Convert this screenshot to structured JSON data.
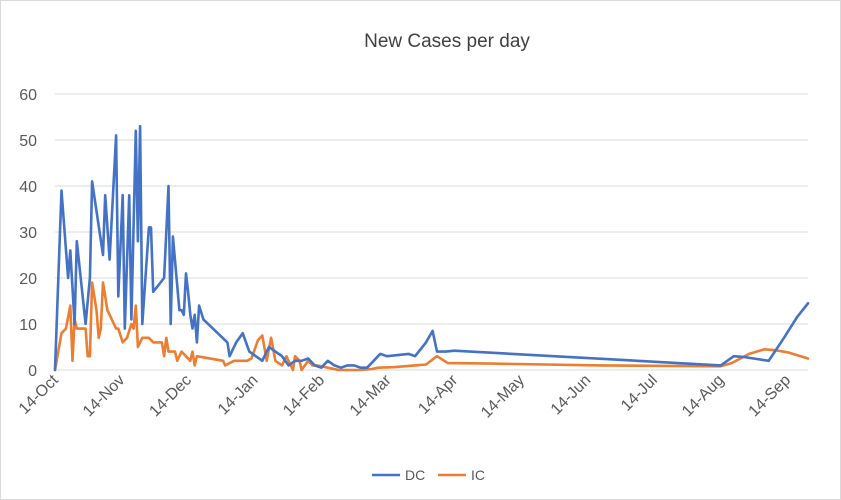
{
  "chart_data": {
    "type": "line",
    "title": "New Cases per day",
    "xlabel": "",
    "ylabel": "",
    "ylim": [
      0,
      60
    ],
    "yticks": [
      0,
      10,
      20,
      30,
      40,
      50,
      60
    ],
    "x_tick_labels": [
      "14-Oct",
      "14-Nov",
      "14-Dec",
      "14-Jan",
      "14-Feb",
      "14-Mar",
      "14-Apr",
      "14-May",
      "14-Jun",
      "14-Jul",
      "14-Aug",
      "14-Sep"
    ],
    "x_unit": "days since 14-Oct",
    "xlim": [
      0,
      345
    ],
    "grid": true,
    "legend_position": "bottom",
    "series": [
      {
        "name": "DC",
        "color": "#4472C4",
        "points": [
          [
            0,
            0
          ],
          [
            3,
            39
          ],
          [
            6,
            20
          ],
          [
            7,
            26
          ],
          [
            9,
            10
          ],
          [
            10,
            28
          ],
          [
            14,
            10
          ],
          [
            16,
            20
          ],
          [
            17,
            41
          ],
          [
            22,
            25
          ],
          [
            23,
            38
          ],
          [
            25,
            24
          ],
          [
            28,
            51
          ],
          [
            29,
            16
          ],
          [
            31,
            38
          ],
          [
            32,
            9
          ],
          [
            34,
            38
          ],
          [
            35,
            11
          ],
          [
            37,
            52
          ],
          [
            38,
            28
          ],
          [
            39,
            53
          ],
          [
            40,
            10
          ],
          [
            43,
            31
          ],
          [
            44,
            31
          ],
          [
            45,
            17
          ],
          [
            50,
            20
          ],
          [
            51,
            30
          ],
          [
            52,
            40
          ],
          [
            53,
            10
          ],
          [
            54,
            29
          ],
          [
            57,
            13
          ],
          [
            58,
            13
          ],
          [
            59,
            12
          ],
          [
            60,
            21
          ],
          [
            61,
            17
          ],
          [
            62,
            12
          ],
          [
            63,
            9
          ],
          [
            64,
            12
          ],
          [
            65,
            6
          ],
          [
            66,
            14
          ],
          [
            68,
            11
          ],
          [
            79,
            6
          ],
          [
            80,
            3
          ],
          [
            83,
            6
          ],
          [
            86,
            8
          ],
          [
            89,
            4
          ],
          [
            92,
            3
          ],
          [
            95,
            2
          ],
          [
            98,
            5
          ],
          [
            101,
            4
          ],
          [
            104,
            3
          ],
          [
            107,
            1
          ],
          [
            110,
            2
          ],
          [
            113,
            2
          ],
          [
            116,
            2.5
          ],
          [
            119,
            1
          ],
          [
            122,
            0.5
          ],
          [
            125,
            2
          ],
          [
            128,
            1
          ],
          [
            131,
            0.5
          ],
          [
            134,
            1
          ],
          [
            137,
            1
          ],
          [
            140,
            0.5
          ],
          [
            143,
            0.5
          ],
          [
            146,
            2
          ],
          [
            149,
            3.5
          ],
          [
            152,
            3
          ],
          [
            162,
            3.5
          ],
          [
            165,
            3
          ],
          [
            170,
            6
          ],
          [
            173,
            8.5
          ],
          [
            175,
            4
          ],
          [
            179,
            4
          ],
          [
            183,
            4.2
          ],
          [
            305,
            1
          ],
          [
            311,
            3
          ],
          [
            316,
            2.8
          ],
          [
            327,
            2
          ],
          [
            334,
            7
          ],
          [
            340,
            11.5
          ],
          [
            345,
            14.5
          ]
        ]
      },
      {
        "name": "IC",
        "color": "#ED7D31",
        "points": [
          [
            0,
            0
          ],
          [
            3,
            8
          ],
          [
            5,
            9
          ],
          [
            7,
            14
          ],
          [
            8,
            2
          ],
          [
            9,
            11
          ],
          [
            10,
            9
          ],
          [
            14,
            9
          ],
          [
            15,
            3
          ],
          [
            16,
            3
          ],
          [
            17,
            19
          ],
          [
            19,
            13
          ],
          [
            20,
            7
          ],
          [
            21,
            9
          ],
          [
            22,
            19
          ],
          [
            24,
            13
          ],
          [
            28,
            9
          ],
          [
            29,
            9
          ],
          [
            31,
            6
          ],
          [
            33,
            7
          ],
          [
            35,
            10
          ],
          [
            36,
            9
          ],
          [
            37,
            14
          ],
          [
            38,
            5
          ],
          [
            40,
            7
          ],
          [
            43,
            7
          ],
          [
            45,
            6
          ],
          [
            49,
            6
          ],
          [
            50,
            3
          ],
          [
            51,
            7
          ],
          [
            52,
            4
          ],
          [
            55,
            4
          ],
          [
            56,
            2
          ],
          [
            58,
            4
          ],
          [
            60,
            3
          ],
          [
            62,
            2
          ],
          [
            63,
            4
          ],
          [
            64,
            1
          ],
          [
            65,
            3
          ],
          [
            77,
            2
          ],
          [
            78,
            1
          ],
          [
            82,
            2
          ],
          [
            88,
            2
          ],
          [
            90,
            2.5
          ],
          [
            93,
            6.5
          ],
          [
            95,
            7.5
          ],
          [
            97,
            2
          ],
          [
            99,
            7
          ],
          [
            101,
            2
          ],
          [
            104,
            1
          ],
          [
            106,
            3
          ],
          [
            107,
            2
          ],
          [
            109,
            0
          ],
          [
            110,
            3
          ],
          [
            112,
            2
          ],
          [
            113,
            0
          ],
          [
            116,
            2
          ],
          [
            118,
            1
          ],
          [
            120,
            1
          ],
          [
            125,
            0.5
          ],
          [
            130,
            0
          ],
          [
            140,
            0
          ],
          [
            145,
            0.2
          ],
          [
            148,
            0.5
          ],
          [
            155,
            0.6
          ],
          [
            165,
            1
          ],
          [
            170,
            1.2
          ],
          [
            175,
            3
          ],
          [
            180,
            1.5
          ],
          [
            200,
            1.4
          ],
          [
            250,
            1
          ],
          [
            305,
            0.8
          ],
          [
            310,
            1.5
          ],
          [
            318,
            3.5
          ],
          [
            325,
            4.5
          ],
          [
            330,
            4.3
          ],
          [
            336,
            3.8
          ],
          [
            345,
            2.5
          ]
        ]
      }
    ]
  }
}
